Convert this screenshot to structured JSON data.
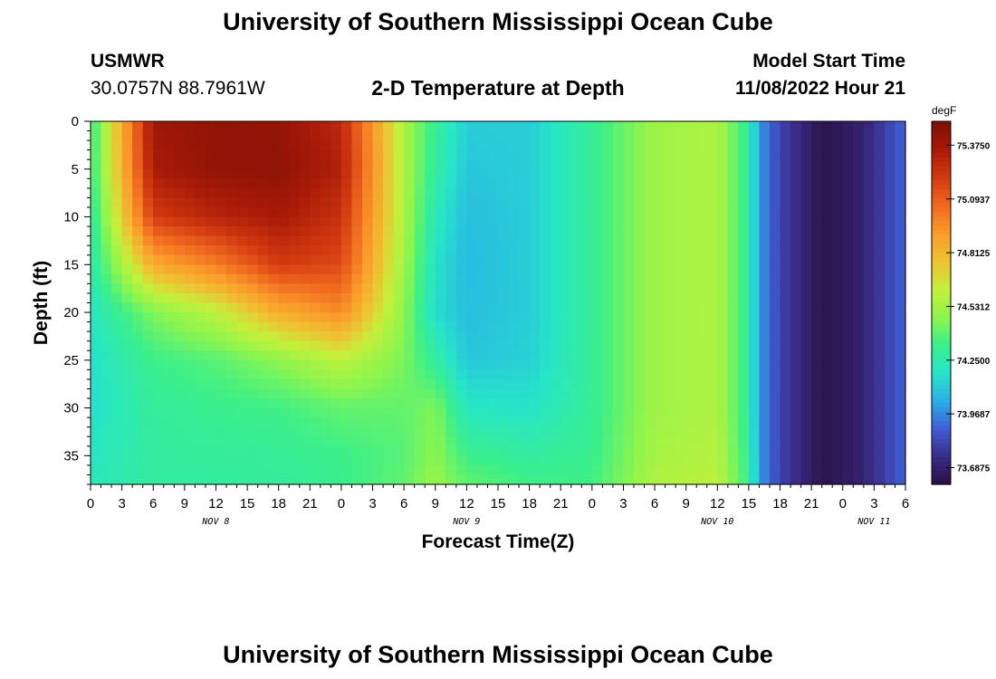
{
  "header": {
    "title": "University of Southern Mississippi Ocean Cube",
    "station_id": "USMWR",
    "station_coords": "30.0757N  88.7961W",
    "plot_title": "2-D Temperature at Depth",
    "model_start_label": "Model Start Time",
    "model_start_value": "11/08/2022 Hour 21"
  },
  "footer": {
    "repeat_title": "University of Southern Mississippi Ocean Cube"
  },
  "chart_data": {
    "type": "heatmap",
    "title": "2-D Temperature at Depth",
    "xlabel": "Forecast Time(Z)",
    "ylabel": "Depth (ft)",
    "units": "degF",
    "x_ticks": [
      "0",
      "3",
      "6",
      "9",
      "12",
      "15",
      "18",
      "21",
      "0",
      "3",
      "6",
      "9",
      "12",
      "15",
      "18",
      "21",
      "0",
      "3",
      "6",
      "9",
      "12",
      "15",
      "18",
      "21",
      "0",
      "3",
      "6"
    ],
    "x_hours": [
      0,
      78
    ],
    "day_labels": [
      {
        "label": "NOV 8",
        "hour": 12
      },
      {
        "label": "NOV 9",
        "hour": 36
      },
      {
        "label": "NOV 10",
        "hour": 60
      },
      {
        "label": "NOV 11",
        "hour": 75
      }
    ],
    "y_ticks": [
      0,
      5,
      10,
      15,
      20,
      25,
      30,
      35
    ],
    "ylim": [
      0,
      38
    ],
    "y_inverted": true,
    "colorbar": {
      "label": "degF",
      "ticks": [
        "75.3750",
        "75.0937",
        "74.8125",
        "74.5312",
        "74.2500",
        "73.9687",
        "73.6875"
      ],
      "range": [
        73.6,
        75.5
      ],
      "colors": [
        "#2a1040",
        "#3a2c88",
        "#3f5fd5",
        "#2ab0e8",
        "#26e5c8",
        "#3bef8a",
        "#8ef54c",
        "#c5ef3a",
        "#f0c032",
        "#fa9a2a",
        "#f06820",
        "#d13a10",
        "#a81a08",
        "#7d0f04"
      ]
    },
    "hours": [
      0,
      6,
      12,
      18,
      24,
      30,
      33,
      36,
      42,
      48,
      54,
      60,
      63,
      64,
      66,
      70,
      74,
      78
    ],
    "depths": [
      0,
      5,
      10,
      15,
      20,
      25,
      30,
      35,
      38
    ],
    "values": [
      [
        74.3,
        74.3,
        74.26,
        74.24,
        74.2,
        74.17,
        74.17,
        74.2,
        74.22
      ],
      [
        75.39,
        75.35,
        75.2,
        74.85,
        74.45,
        74.33,
        74.29,
        74.28,
        74.28
      ],
      [
        75.43,
        75.43,
        75.3,
        75.0,
        74.6,
        74.38,
        74.32,
        74.29,
        74.28
      ],
      [
        75.42,
        75.44,
        75.36,
        75.2,
        74.84,
        74.48,
        74.34,
        74.3,
        74.29
      ],
      [
        75.28,
        75.32,
        75.24,
        75.16,
        74.96,
        74.6,
        74.4,
        74.33,
        74.32
      ],
      [
        74.55,
        74.55,
        74.55,
        74.52,
        74.48,
        74.44,
        74.4,
        74.38,
        74.4
      ],
      [
        74.3,
        74.28,
        74.22,
        74.18,
        74.16,
        74.28,
        74.45,
        74.48,
        74.5
      ],
      [
        74.12,
        74.1,
        74.08,
        74.07,
        74.08,
        74.1,
        74.2,
        74.33,
        74.4
      ],
      [
        74.12,
        74.12,
        74.12,
        74.12,
        74.12,
        74.13,
        74.18,
        74.28,
        74.34
      ],
      [
        74.3,
        74.3,
        74.3,
        74.3,
        74.3,
        74.3,
        74.3,
        74.32,
        74.34
      ],
      [
        74.52,
        74.52,
        74.52,
        74.52,
        74.52,
        74.52,
        74.52,
        74.54,
        74.56
      ],
      [
        74.56,
        74.56,
        74.56,
        74.56,
        74.56,
        74.56,
        74.56,
        74.58,
        74.6
      ],
      [
        74.28,
        74.28,
        74.28,
        74.28,
        74.28,
        74.28,
        74.28,
        74.3,
        74.32
      ],
      [
        74.0,
        74.0,
        74.0,
        74.0,
        74.0,
        74.0,
        74.0,
        74.0,
        74.0
      ],
      [
        73.82,
        73.82,
        73.82,
        73.82,
        73.82,
        73.82,
        73.82,
        73.82,
        73.82
      ],
      [
        73.62,
        73.62,
        73.62,
        73.62,
        73.62,
        73.62,
        73.62,
        73.62,
        73.62
      ],
      [
        73.7,
        73.7,
        73.7,
        73.7,
        73.7,
        73.7,
        73.7,
        73.7,
        73.7
      ],
      [
        73.9,
        73.9,
        73.9,
        73.9,
        73.9,
        73.9,
        73.9,
        73.9,
        73.9
      ]
    ]
  }
}
